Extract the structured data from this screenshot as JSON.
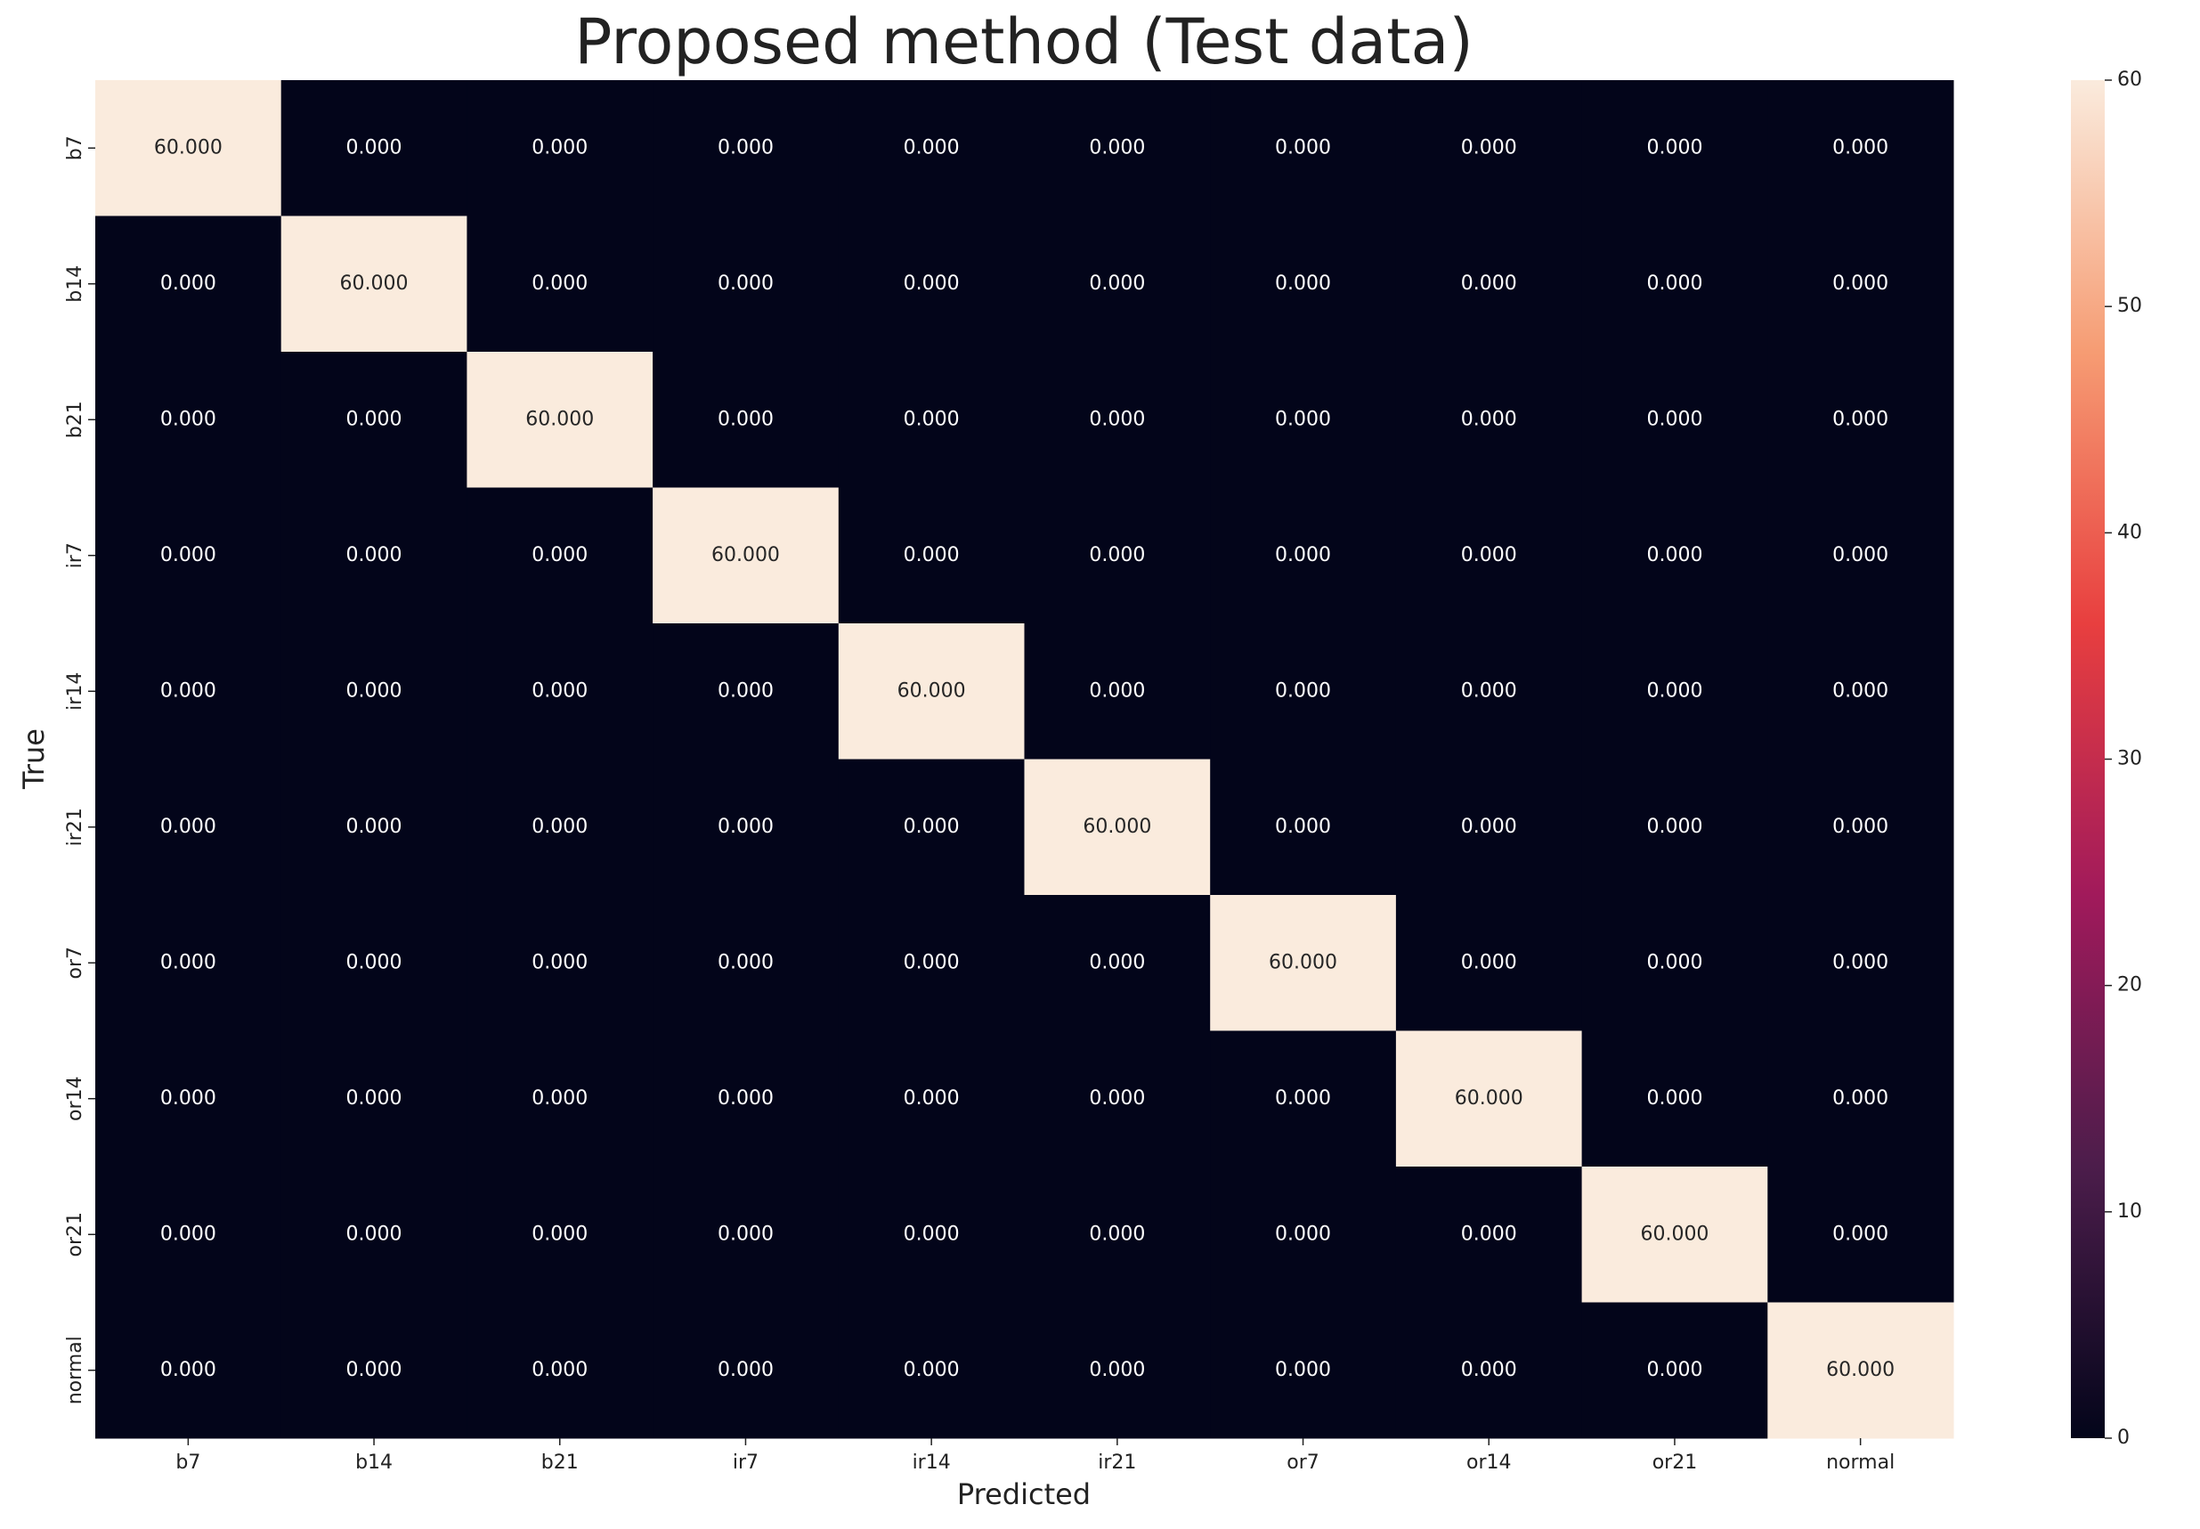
{
  "chart_data": {
    "type": "heatmap",
    "title": "Proposed method (Test data)",
    "x_label": "Predicted",
    "y_label": "True",
    "x_categories": [
      "b7",
      "b14",
      "b21",
      "ir7",
      "ir14",
      "ir21",
      "or7",
      "or14",
      "or21",
      "normal"
    ],
    "y_categories": [
      "b7",
      "b14",
      "b21",
      "ir7",
      "ir14",
      "ir21",
      "or7",
      "or14",
      "or21",
      "normal"
    ],
    "values": [
      [
        60,
        0,
        0,
        0,
        0,
        0,
        0,
        0,
        0,
        0
      ],
      [
        0,
        60,
        0,
        0,
        0,
        0,
        0,
        0,
        0,
        0
      ],
      [
        0,
        0,
        60,
        0,
        0,
        0,
        0,
        0,
        0,
        0
      ],
      [
        0,
        0,
        0,
        60,
        0,
        0,
        0,
        0,
        0,
        0
      ],
      [
        0,
        0,
        0,
        0,
        60,
        0,
        0,
        0,
        0,
        0
      ],
      [
        0,
        0,
        0,
        0,
        0,
        60,
        0,
        0,
        0,
        0
      ],
      [
        0,
        0,
        0,
        0,
        0,
        0,
        60,
        0,
        0,
        0
      ],
      [
        0,
        0,
        0,
        0,
        0,
        0,
        0,
        60,
        0,
        0
      ],
      [
        0,
        0,
        0,
        0,
        0,
        0,
        0,
        0,
        60,
        0
      ],
      [
        0,
        0,
        0,
        0,
        0,
        0,
        0,
        0,
        0,
        60
      ]
    ],
    "value_labels": [
      [
        "60.000",
        "0.000",
        "0.000",
        "0.000",
        "0.000",
        "0.000",
        "0.000",
        "0.000",
        "0.000",
        "0.000"
      ],
      [
        "0.000",
        "60.000",
        "0.000",
        "0.000",
        "0.000",
        "0.000",
        "0.000",
        "0.000",
        "0.000",
        "0.000"
      ],
      [
        "0.000",
        "0.000",
        "60.000",
        "0.000",
        "0.000",
        "0.000",
        "0.000",
        "0.000",
        "0.000",
        "0.000"
      ],
      [
        "0.000",
        "0.000",
        "0.000",
        "60.000",
        "0.000",
        "0.000",
        "0.000",
        "0.000",
        "0.000",
        "0.000"
      ],
      [
        "0.000",
        "0.000",
        "0.000",
        "0.000",
        "60.000",
        "0.000",
        "0.000",
        "0.000",
        "0.000",
        "0.000"
      ],
      [
        "0.000",
        "0.000",
        "0.000",
        "0.000",
        "0.000",
        "60.000",
        "0.000",
        "0.000",
        "0.000",
        "0.000"
      ],
      [
        "0.000",
        "0.000",
        "0.000",
        "0.000",
        "0.000",
        "0.000",
        "60.000",
        "0.000",
        "0.000",
        "0.000"
      ],
      [
        "0.000",
        "0.000",
        "0.000",
        "0.000",
        "0.000",
        "0.000",
        "0.000",
        "60.000",
        "0.000",
        "0.000"
      ],
      [
        "0.000",
        "0.000",
        "0.000",
        "0.000",
        "0.000",
        "0.000",
        "0.000",
        "0.000",
        "60.000",
        "0.000"
      ],
      [
        "0.000",
        "0.000",
        "0.000",
        "0.000",
        "0.000",
        "0.000",
        "0.000",
        "0.000",
        "0.000",
        "60.000"
      ]
    ],
    "colormap": "rocket",
    "clim": [
      0,
      60
    ],
    "cticks": [
      0,
      10,
      20,
      30,
      40,
      50,
      60
    ]
  }
}
